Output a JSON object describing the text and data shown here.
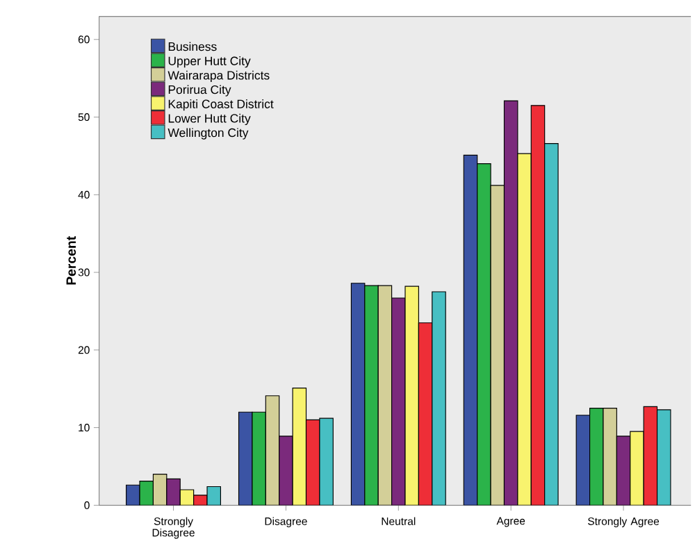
{
  "chart_data": {
    "type": "bar",
    "ylabel": "Percent",
    "categories": [
      "Strongly Disagree",
      "Disagree",
      "Neutral",
      "Agree",
      "Strongly Agree"
    ],
    "series": [
      {
        "name": "Business",
        "color": "#3b54a4",
        "values": [
          2.6,
          12.0,
          28.6,
          45.1,
          11.6
        ]
      },
      {
        "name": "Upper Hutt City",
        "color": "#2bb34a",
        "values": [
          3.1,
          12.0,
          28.3,
          44.0,
          12.5
        ]
      },
      {
        "name": "Wairarapa Districts",
        "color": "#d3cf98",
        "values": [
          4.0,
          14.1,
          28.3,
          41.2,
          12.5
        ]
      },
      {
        "name": "Porirua City",
        "color": "#7b2a7c",
        "values": [
          3.4,
          8.9,
          26.7,
          52.1,
          8.9
        ]
      },
      {
        "name": "Kapiti Coast District",
        "color": "#f8f36e",
        "values": [
          2.0,
          15.1,
          28.2,
          45.3,
          9.5
        ]
      },
      {
        "name": "Lower Hutt City",
        "color": "#ee2e37",
        "values": [
          1.3,
          11.0,
          23.5,
          51.5,
          12.7
        ]
      },
      {
        "name": "Wellington City",
        "color": "#47bfc3",
        "values": [
          2.4,
          11.2,
          27.5,
          46.6,
          12.3
        ]
      }
    ],
    "ylim": [
      0,
      63
    ],
    "yticks": [
      0,
      10,
      20,
      30,
      40,
      50,
      60
    ],
    "legend": "top left",
    "grid": false
  }
}
